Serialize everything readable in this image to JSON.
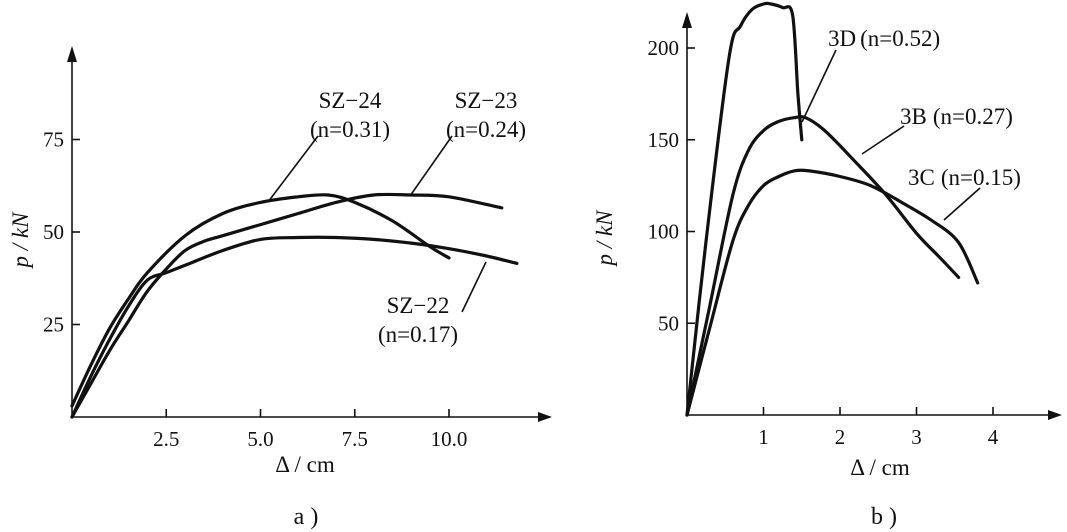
{
  "chart_data": [
    {
      "type": "line",
      "panel_label": "a )",
      "xlabel": "Δ / cm",
      "ylabel": "p / kN",
      "xlim": [
        0,
        12.5
      ],
      "ylim": [
        0,
        100
      ],
      "xticks": [
        "2.5",
        "5.0",
        "7.5",
        "10.0"
      ],
      "yticks": [
        "25",
        "50",
        "75"
      ],
      "grid": false,
      "series": [
        {
          "name": "SZ−24",
          "annotation": "(n=0.31)",
          "x": [
            0,
            0.5,
            1.0,
            1.5,
            2.0,
            3.0,
            4.0,
            5.0,
            6.0,
            6.8,
            7.5,
            8.5,
            9.5,
            10.0
          ],
          "y": [
            3,
            14,
            24,
            32,
            39,
            49,
            55,
            58,
            59.5,
            60,
            58,
            53,
            46,
            43
          ]
        },
        {
          "name": "SZ−23",
          "annotation": "(n=0.24)",
          "x": [
            0,
            0.5,
            1.0,
            1.5,
            2.0,
            2.5,
            3.0,
            3.5,
            4.0,
            5.0,
            6.0,
            7.0,
            8.0,
            9.0,
            10.0,
            11.4
          ],
          "y": [
            0,
            9,
            18,
            26,
            34,
            40,
            45,
            47.5,
            49,
            52,
            55,
            58,
            60,
            60,
            59.5,
            56.5
          ]
        },
        {
          "name": "SZ−22",
          "annotation": "(n=0.17)",
          "x": [
            0,
            0.5,
            1.0,
            1.5,
            2.0,
            2.5,
            3.0,
            4.0,
            5.0,
            6.0,
            7.0,
            8.0,
            9.0,
            10.0,
            11.0,
            11.8
          ],
          "y": [
            0,
            11,
            21,
            30,
            37,
            39,
            41,
            45,
            48,
            48.5,
            48.5,
            48,
            47,
            45.5,
            43.5,
            41.5
          ]
        }
      ]
    },
    {
      "type": "line",
      "panel_label": "b )",
      "xlabel": "Δ / cm",
      "ylabel": "p / kN",
      "xlim": [
        0,
        4.9
      ],
      "ylim": [
        0,
        225
      ],
      "xticks": [
        "1",
        "2",
        "3",
        "4"
      ],
      "yticks": [
        "50",
        "100",
        "150",
        "200"
      ],
      "grid": false,
      "series": [
        {
          "name": "3D",
          "annotation": "(n=0.52)",
          "x": [
            0,
            0.25,
            0.55,
            0.7,
            0.85,
            1.0,
            1.1,
            1.25,
            1.38,
            1.45,
            1.5
          ],
          "y": [
            0,
            95,
            195,
            212,
            221,
            224,
            224,
            222,
            218,
            175,
            150
          ]
        },
        {
          "name": "3B",
          "annotation": "(n=0.27)",
          "x": [
            0,
            0.3,
            0.6,
            0.8,
            1.0,
            1.2,
            1.4,
            1.55,
            1.8,
            2.2,
            2.6,
            3.0,
            3.3,
            3.55
          ],
          "y": [
            0,
            60,
            120,
            144,
            155,
            160,
            162,
            162,
            155,
            138,
            120,
            99,
            86,
            75
          ]
        },
        {
          "name": "3C",
          "annotation": "(n=0.15)",
          "x": [
            0,
            0.3,
            0.6,
            0.8,
            1.0,
            1.2,
            1.4,
            1.6,
            2.0,
            2.4,
            2.8,
            3.2,
            3.55,
            3.8
          ],
          "y": [
            0,
            48,
            95,
            114,
            125,
            130,
            133,
            133,
            130,
            125,
            116,
            106,
            94,
            72
          ]
        }
      ]
    }
  ]
}
